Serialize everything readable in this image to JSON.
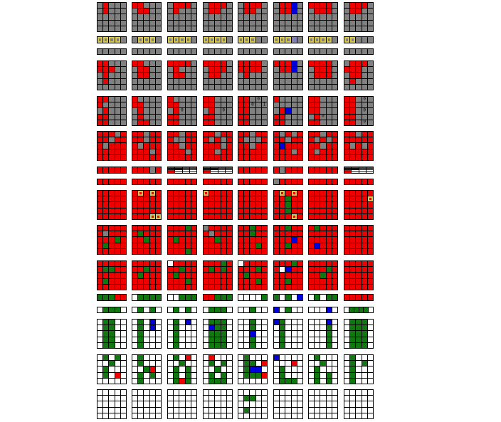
{
  "palette": {
    "G": "#808080",
    "R": "#ee0000",
    "g": "#117711",
    "B": "#0000dd",
    "W": "#ffffff",
    "H": "#8080b0",
    "highlight": "#d8c84a"
  },
  "rows": [
    {
      "label": "state-1",
      "frames": [
        [
          "GRGGG",
          "GRGGG",
          "GGGGG",
          "GGGGG",
          "GGGGG"
        ],
        [
          "RRGGG",
          "GRRGG",
          "GGGGG",
          "GGGGG",
          "GGGGG"
        ],
        [
          "GRRRG",
          "GRGGG",
          "GGGGG",
          "GGGGG",
          "GGGGG"
        ],
        [
          "GRRRG",
          "GRRGG",
          "GGGGG",
          "GGGGG",
          "GGGGG"
        ],
        [
          "GRRRG",
          "GRRGG",
          "GGGGG",
          "GGGGG",
          "GGGGG"
        ],
        [
          "GRRBG",
          "GRRBG",
          "GGGGG",
          "GGGGG",
          "GGGGG"
        ],
        [
          "RRRRG",
          "GRRRG",
          "GGGGG",
          "GGGGG",
          "GGGGG"
        ],
        [
          "GRRRG",
          "GRRGG",
          "GGGGG",
          "GGGGG",
          "GGGGG"
        ]
      ]
    },
    {
      "label": "selector-1",
      "frames": [
        [
          [
            "G*",
            "G*",
            "G*",
            "G*",
            "G"
          ]
        ],
        [
          [
            "G",
            "G*",
            "G*",
            "G*",
            "G"
          ]
        ],
        [
          [
            "G*",
            "G*",
            "G*",
            "G*",
            "G"
          ]
        ],
        [
          [
            "G*",
            "G*",
            "G*",
            "G*",
            "G"
          ]
        ],
        [
          [
            "G*",
            "G*",
            "G*",
            "G",
            "G"
          ]
        ],
        [
          [
            "G*",
            "G*",
            "G*",
            "H",
            "G"
          ]
        ],
        [
          [
            "G*",
            "G*",
            "G*",
            "G*",
            "G"
          ]
        ],
        [
          [
            "G*",
            "G*",
            "G",
            "G",
            "G"
          ]
        ]
      ]
    },
    {
      "label": "bar-1",
      "frames": [
        [
          "GGGGG"
        ],
        [
          "GGGGG"
        ],
        [
          "GGGGG"
        ],
        [
          "GGGGG"
        ],
        [
          "GGGGG"
        ],
        [
          "GGGGG"
        ],
        [
          "GGGGG"
        ],
        [
          "GGGGG"
        ]
      ]
    },
    {
      "label": "state-2",
      "frames": [
        [
          "RRGGG",
          "RRRGG",
          "GRGGG",
          "GRGGG",
          "GGGGG"
        ],
        [
          "RRGGG",
          "GRRGG",
          "GRRGG",
          "GGGGG",
          "GGGGG"
        ],
        [
          "RRRRG",
          "GRGGG",
          "GRRGG",
          "GGGGG",
          "GGGGG"
        ],
        [
          "RRRRG",
          "GRRRG",
          "GRRGG",
          "GGGGG",
          "GGGGG"
        ],
        [
          "RRRRG",
          "RRRRG",
          "GRGGG",
          "GGGGG",
          "GGGGG"
        ],
        [
          "RRRBG",
          "GRRBG",
          "GGGGG",
          "GGGGG",
          "GGGGG"
        ],
        [
          "RRRRG",
          "GRRRG",
          "GRRRG",
          "GGGGG",
          "GGGGG"
        ],
        [
          "GRRRG",
          "RRRGG",
          "GRRGG",
          "GRGGG",
          "GGGGG"
        ]
      ]
    },
    {
      "label": "state-3",
      "frames": [
        [
          "RRGGG",
          "RGGGG",
          "GRGGG",
          "RRGGG",
          "RRGGG"
        ],
        [
          "RGGGG",
          "RRGGG",
          "GRGGG",
          "GRGGG",
          "GRRGG"
        ],
        [
          "RGGGG",
          "RRGGG",
          [
            "G",
            "R",
            [
              "G",
              "0"
            ],
            "G",
            "G"
          ],
          "RRGGG",
          "RRGGG"
        ],
        [
          "RRGGG",
          "RRGGG",
          [
            "G",
            "R",
            "G",
            [
              "G",
              "0"
            ],
            "G"
          ],
          "RRGGG",
          "RRGGG"
        ],
        [
          [
            "R",
            "R",
            "G",
            [
              "G",
              "0"
            ],
            "G"
          ],
          [
            "R",
            "R",
            [
              "G",
              "0"
            ],
            "G",
            [
              "G",
              "1"
            ]
          ],
          "RRGGG",
          "RRGGG",
          "RRGGG"
        ],
        [
          "RGGGG",
          "GGGGG",
          [
            "G",
            "R",
            "B",
            "G",
            "G"
          ],
          "RRGGG",
          "RRGGG"
        ],
        [
          "RRGGG",
          "RRGGG",
          "RRGGG",
          [
            "G",
            "R",
            [
              "G",
              "0"
            ],
            "G",
            "G"
          ],
          "RRGGG"
        ],
        [
          [
            "R",
            "R",
            "G",
            [
              "G",
              "0"
            ],
            "G"
          ],
          "RRGGG",
          [
            "R",
            "R",
            "G",
            [
              "G",
              "0"
            ],
            "G"
          ],
          "RRGGG",
          [
            "R",
            "R",
            "G",
            [
              "G",
              "0"
            ],
            "G"
          ]
        ]
      ]
    },
    {
      "label": "state-4",
      "frames": [
        [
          "RRRGR",
          "RRGRR",
          "RGRRR",
          "RRRRR",
          "RRRRR"
        ],
        [
          "RRGRR",
          "RRGRR",
          "RGRRR",
          "RRRGR",
          "RRRRR"
        ],
        [
          "RRGRR",
          "RGGRR",
          "RRGRR",
          "RRRGR",
          "RRRRR"
        ],
        [
          "RRGRR",
          "RGRGR",
          "RRRGR",
          "RRGRR",
          "RRRRR"
        ],
        [
          "RRGRR",
          "RGGGR",
          "RRGRR",
          "RRRRR",
          "RRRRR"
        ],
        [
          "RGRGR",
          "RRGRR",
          "RBRRR",
          "RRRGR",
          "RRRRR"
        ],
        [
          "RRGRR",
          "RGRGR",
          "RRGRR",
          "RGRRR",
          "RRRRR"
        ],
        [
          "RRGRR",
          "RRRRR",
          "RGRGR",
          "RRRRR",
          "RRRRR"
        ]
      ]
    },
    {
      "label": "selector-2",
      "frames": [
        [
          "RRRRR"
        ],
        [
          "RRRGR"
        ],
        [
          "RRRR",
          "RR",
          "R",
          "R",
          "R*"
        ],
        [
          "RRRR",
          "RR",
          "R",
          "R",
          "R*"
        ],
        [
          "RRRRR"
        ],
        [
          "RGRRR"
        ],
        [
          "RRRRR"
        ],
        [
          "RRRR",
          "RR",
          "R",
          "R",
          "R*"
        ]
      ]
    },
    {
      "label": "bar-2",
      "frames": [
        [
          "RRRRR"
        ],
        [
          "RRRRR"
        ],
        [
          "RRRRR"
        ],
        [
          "RRRRR"
        ],
        [
          "RRRRR"
        ],
        [
          "GRRRR"
        ],
        [
          "RRRRR"
        ],
        [
          "RRRRR"
        ]
      ]
    },
    {
      "label": "state-5",
      "frames": [
        [
          "RRRRR",
          "RRRRR",
          "RRRRR",
          "RRRRR",
          "RRRRR"
        ],
        [
          [
            "R",
            "R*",
            "R",
            "R*",
            "R"
          ],
          "RRRRR",
          "RRRRR",
          "RRRRR",
          [
            "R",
            "R",
            "R",
            "R*",
            "R*"
          ]
        ],
        [
          "RRRRR",
          "RRRRR",
          "RRRRR",
          "RRRRR",
          "RRRRR"
        ],
        [
          [
            "R*",
            "R",
            "R",
            "R",
            "R"
          ],
          "RRRRR",
          "RRRRR",
          "RRRRR",
          "RRRRR"
        ],
        [
          "RRRRR",
          "RRRRR",
          "RRRRR",
          "RRRRR",
          "RRRRR"
        ],
        [
          [
            "R",
            "R*",
            "R",
            "R*",
            "R"
          ],
          "RRgRR",
          "RRgRR",
          "RRgRR",
          [
            "R",
            "R",
            "R",
            "R*",
            "R"
          ]
        ],
        [
          "RRRRR",
          "RRRRR",
          "RRRRR",
          "RRRRR",
          "RRRRR"
        ],
        [
          "RRRRR",
          [
            "R",
            "R",
            "R",
            "R",
            "R*"
          ],
          "RRRRR",
          "RRRRR",
          "RRRRR"
        ]
      ]
    },
    {
      "label": "state-6",
      "frames": [
        [
          "RRRRR",
          "RGRRR",
          "RRRgR",
          "RgRRR",
          "RRRRR"
        ],
        [
          "RRRRR",
          "RgRRR",
          "RRgRR",
          "RRRRR",
          "RRRRR"
        ],
        [
          "RRRgR",
          "RRRRR",
          "RgRRR",
          "RRRRR",
          "RRRgR"
        ],
        [
          "GRRRR",
          "RGRRR",
          "RRgRR",
          "RRRRR",
          "RRRRR"
        ],
        [
          "RRgRR",
          "RRgRR",
          "RRRRR",
          "RRRgR",
          "RRRRR"
        ],
        [
          "RRgRR",
          "RRRRR",
          "RRRBR",
          "RRgRR",
          "RRRRR"
        ],
        [
          "RgRRR",
          "RRRRR",
          "RRRRR",
          "RBRRR",
          "RRRRR"
        ],
        [
          "RRRRR",
          "RRRRR",
          "RRRRR",
          "RRRRR",
          "RRRRR"
        ]
      ]
    },
    {
      "label": "state-7",
      "frames": [
        [
          "RRRRR",
          "RggRR",
          "RRRRR",
          "RgRRR",
          "RRRRR"
        ],
        [
          "RRRRR",
          "RRgRR",
          "RgRRR",
          "RRRRR",
          "RRRRR"
        ],
        [
          "WRRRR",
          "RRgRR",
          "RgRRR",
          "RRRgR",
          "RRRRR"
        ],
        [
          "RRRgR",
          "RgRgR",
          "RRRRR",
          "RRRRR",
          "RRRRR"
        ],
        [
          "WRRRR",
          "RRRgR",
          "RgRRR",
          "RRRgR",
          "RRRRR"
        ],
        [
          "RRRgR",
          "RWBRR",
          "RRRRR",
          "RRgRR",
          "RRRRR"
        ],
        [
          "RRRRR",
          "RRRgR",
          "RRgRR",
          "RRRRR",
          "RRRRR"
        ],
        [
          "RRRRR",
          "RRRRR",
          "RRRRR",
          "RRRRR",
          "RRRRR"
        ]
      ]
    },
    {
      "label": "row-8",
      "frames": [
        [
          "gggRR"
        ],
        [
          "Wgggg"
        ],
        [
          "WWggg"
        ],
        [
          "RRggg"
        ],
        [
          "WWWWg"
        ],
        [
          "gWgWB"
        ],
        [
          "WgWgg"
        ],
        [
          "RRRRR"
        ]
      ]
    },
    {
      "label": "row-9",
      "frames": [
        [
          "WgggW"
        ],
        [
          "WgWgW"
        ],
        [
          "WgWgW"
        ],
        [
          "WgggW"
        ],
        [
          "WWgWW"
        ],
        [
          "BWgWW"
        ],
        [
          "WWWBW"
        ],
        [
          "WggggW"
        ]
      ]
    },
    {
      "label": "state-8",
      "frames": [
        [
          "WggWW",
          "WggWW",
          "WggWW",
          "WggWW",
          "WggWW"
        ],
        [
          "WgWBW",
          "WgWBW",
          "WgWWW",
          "WgWWW",
          "WgWWW"
        ],
        [
          "WgWBW",
          "WgWWW",
          "WgWWW",
          "WgWWW",
          "WgWWW"
        ],
        [
          "WgggW",
          "WBggW",
          "WgggW",
          "WgggW",
          "WgggW"
        ],
        [
          "WWgWW",
          "WWgWW",
          "WWBWW",
          "WWgWW",
          "WWgWW"
        ],
        [
          "BgWWW",
          "WgWWW",
          "WgWWW",
          "WgWWW",
          "WgWWW"
        ],
        [
          "WWWBW",
          "WWWgW",
          "WWWgW",
          "WWWgW",
          "WWWgW"
        ],
        [
          "WgggW",
          "WgggW",
          "WgggW",
          "WgggW",
          "WgggW"
        ]
      ]
    },
    {
      "label": "state-9",
      "frames": [
        [
          "WgWgW",
          "WWgWW",
          "WgWWW",
          "WgWRW",
          "WWWWW"
        ],
        [
          "WgWWW",
          "WgWWW",
          "WWgRW",
          "WgWgW",
          "WgWWW"
        ],
        [
          "WgWRW",
          "WWgWW",
          "WgWgW",
          "WgWgW",
          "WgRgW"
        ],
        [
          "WRWWW",
          "WgWgW",
          "WWgWW",
          "WgWgW",
          "WgggW"
        ],
        [
          "WgWWW",
          "WggWR",
          "WgBBW",
          "WgggR",
          "WWWWW"
        ],
        [
          "BWWWW",
          "WWWRW",
          "WgWWW",
          "WgWWW",
          "WgggW"
        ],
        [
          "WgWWW",
          "WWgWW",
          "WgWWW",
          "WgWgW",
          "WgWgW"
        ],
        [
          "WgWWW",
          "WgWgW",
          "WgWWW",
          "WgWWW",
          "WgWWW"
        ]
      ]
    },
    {
      "label": "state-10",
      "frames": [
        [
          "WWWWW",
          "WWWWW",
          "WWWWW",
          "WWWWW",
          "WWWWW"
        ],
        [
          "WWWWW",
          "WWWWW",
          "WWWWW",
          "WWWWW",
          "WWWWW"
        ],
        [
          "WWWWW",
          "WWWWW",
          "WWWWW",
          "WWWWW",
          "WWWWW"
        ],
        [
          "WWWWW",
          "WWWWW",
          "WWWWW",
          "WWWWW",
          "WWWWW"
        ],
        [
          "WWWWW",
          "WggWW",
          "WWWWW",
          "WgWWW",
          "WWWWW"
        ],
        [
          "WWWWW",
          "WWWWW",
          "WWWWW",
          "WWWWW",
          "WWWWW"
        ],
        [
          "WWWWW",
          "WWWWW",
          "WWWWW",
          "WWWWW",
          "WWWWW"
        ],
        [
          "WWWWW",
          "WWWWW",
          "WWWWW",
          "WWWWW",
          "WWWWW"
        ]
      ]
    }
  ]
}
